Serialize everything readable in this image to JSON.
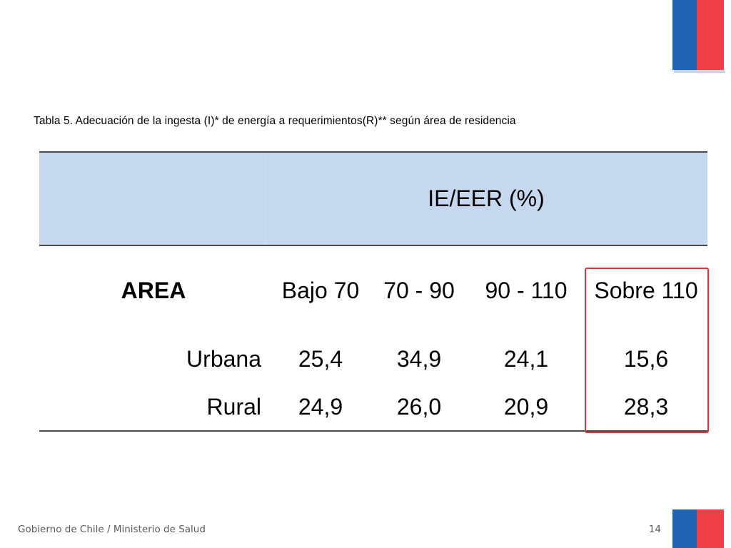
{
  "slide": {
    "caption": "Tabla 5. Adecuación de la ingesta (I)* de energía a requerimientos(R)** según área de residencia",
    "footer": "Gobierno de Chile / Ministerio de Salud",
    "page_number": "14"
  },
  "table": {
    "group_header": "IE/EER (%)",
    "row_header": "AREA",
    "columns": [
      "Bajo 70",
      "70 - 90",
      "90 - 110",
      "Sobre 110"
    ],
    "rows": [
      {
        "label": "Urbana",
        "values": [
          "25,4",
          "34,9",
          "24,1",
          "15,6"
        ]
      },
      {
        "label": "Rural",
        "values": [
          "24,9",
          "26,0",
          "20,9",
          "28,3"
        ]
      }
    ],
    "highlighted_column": "Sobre 110"
  },
  "colors": {
    "header_band": "#c6d8f0",
    "highlight_border": "#d03a3a",
    "flag_blue": "#1f64b4",
    "flag_red": "#ef3f47"
  }
}
